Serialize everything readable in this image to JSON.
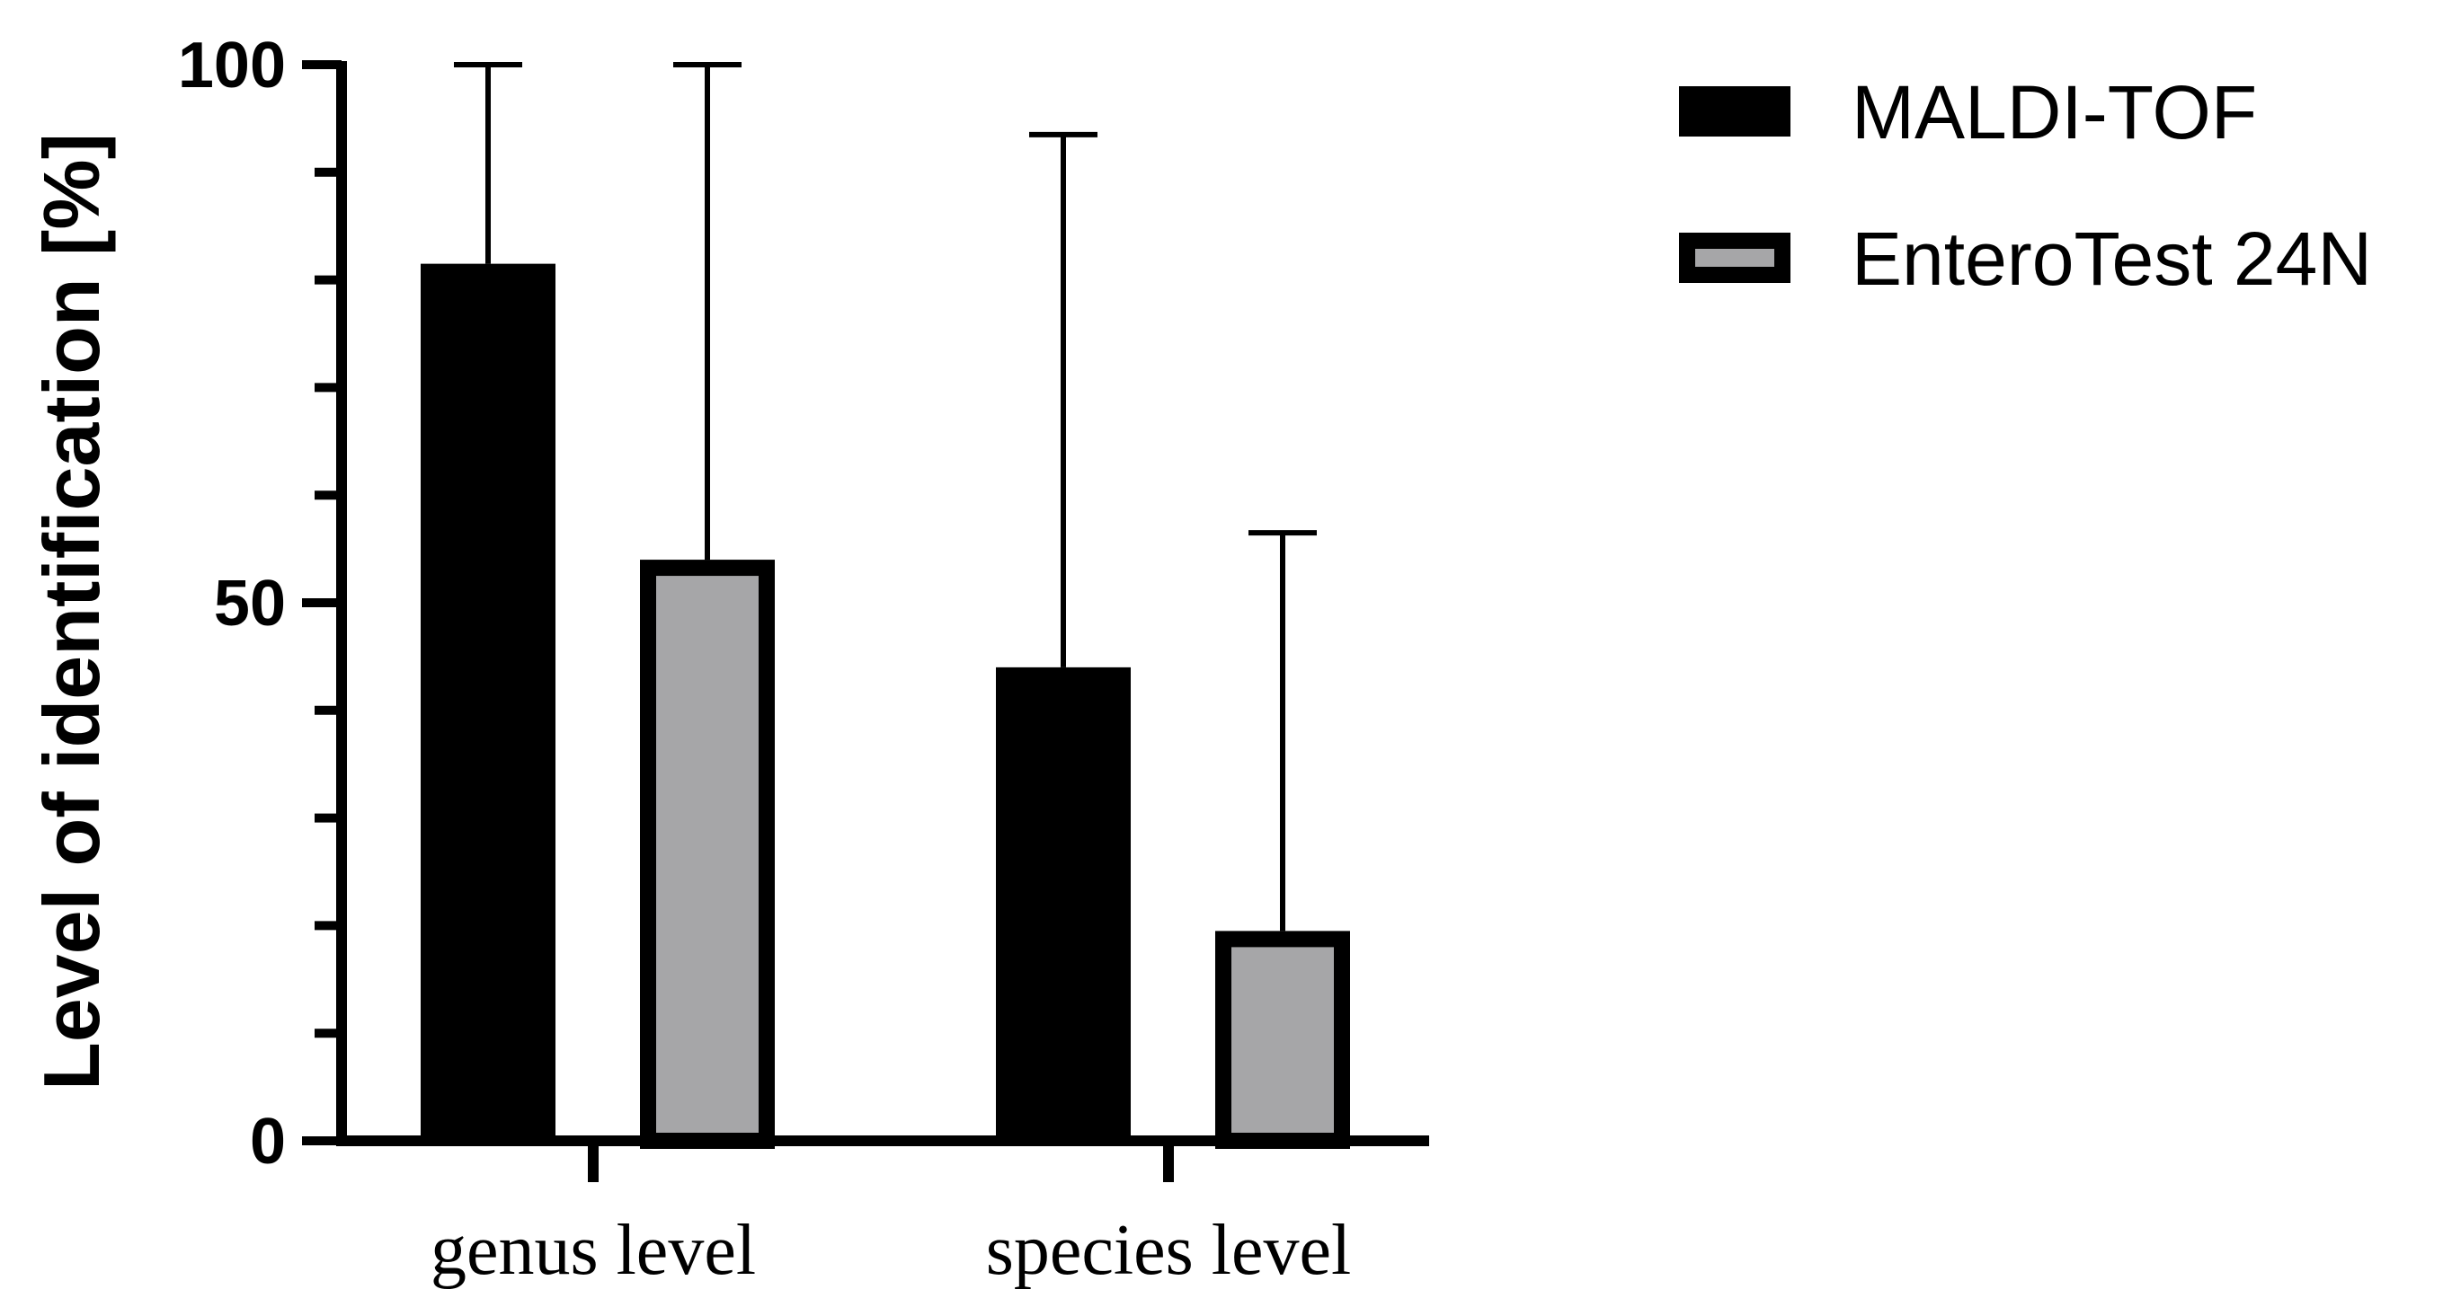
{
  "chart_data": {
    "type": "bar",
    "title": "",
    "xlabel": "",
    "ylabel": "Level of identification [%]",
    "ylim": [
      0,
      100
    ],
    "yticks_major": [
      0,
      50,
      100
    ],
    "yticks_minor_step": 10,
    "grid": false,
    "legend_position": "top-right",
    "categories": [
      "genus level",
      "species level"
    ],
    "series": [
      {
        "name": "MALDI-TOF",
        "color": "#000000",
        "edge_color": "#000000",
        "values": [
          81.5,
          44
        ],
        "error_upper": [
          100,
          93.5
        ]
      },
      {
        "name": "EnteroTest 24N",
        "color": "#a6a6a8",
        "edge_color": "#000000",
        "values": [
          54,
          19.5
        ],
        "error_upper": [
          100,
          56.5
        ]
      }
    ]
  }
}
